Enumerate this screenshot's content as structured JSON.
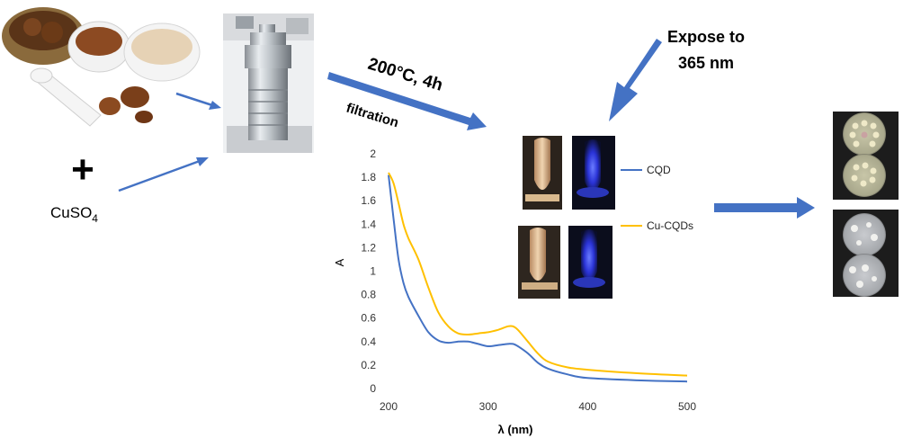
{
  "reagent": {
    "plus": "+",
    "formula": "CuSO",
    "subscript": "4"
  },
  "reaction": {
    "condition": "200°C, 4h",
    "step": "filtration"
  },
  "expose": {
    "line1": "Expose to",
    "line2": "365 nm"
  },
  "legend": {
    "cqd": "CQD",
    "cu_cqd": "Cu-CQDs"
  },
  "colors": {
    "cqd": "#4472C4",
    "cu_cqd": "#FFC000",
    "arrow": "#4472C4"
  },
  "chart_data": {
    "type": "line",
    "xlabel": "λ (nm)",
    "ylabel": "A",
    "xlim": [
      200,
      500
    ],
    "ylim": [
      0,
      2
    ],
    "x_ticks": [
      200,
      300,
      400,
      500
    ],
    "y_ticks": [
      "0",
      "0.2",
      "0.4",
      "0.6",
      "0.8",
      "1",
      "1.2",
      "1.4",
      "1.6",
      "1.8",
      "2"
    ],
    "series": [
      {
        "name": "CQD",
        "color": "#4472C4",
        "x": [
          200,
          205,
          210,
          215,
          220,
          230,
          240,
          250,
          260,
          270,
          280,
          290,
          300,
          310,
          320,
          325,
          330,
          340,
          350,
          360,
          380,
          400,
          450,
          500
        ],
        "y": [
          1.82,
          1.45,
          1.1,
          0.9,
          0.78,
          0.62,
          0.48,
          0.41,
          0.39,
          0.4,
          0.4,
          0.38,
          0.36,
          0.37,
          0.38,
          0.38,
          0.36,
          0.3,
          0.22,
          0.17,
          0.12,
          0.09,
          0.07,
          0.06
        ]
      },
      {
        "name": "Cu-CQDs",
        "color": "#FFC000",
        "x": [
          200,
          205,
          210,
          215,
          220,
          230,
          240,
          250,
          260,
          270,
          280,
          290,
          300,
          310,
          320,
          325,
          330,
          340,
          350,
          360,
          380,
          400,
          450,
          500
        ],
        "y": [
          1.84,
          1.75,
          1.58,
          1.4,
          1.28,
          1.1,
          0.86,
          0.65,
          0.53,
          0.47,
          0.46,
          0.47,
          0.48,
          0.5,
          0.53,
          0.53,
          0.5,
          0.4,
          0.3,
          0.23,
          0.18,
          0.16,
          0.13,
          0.11
        ]
      }
    ]
  }
}
